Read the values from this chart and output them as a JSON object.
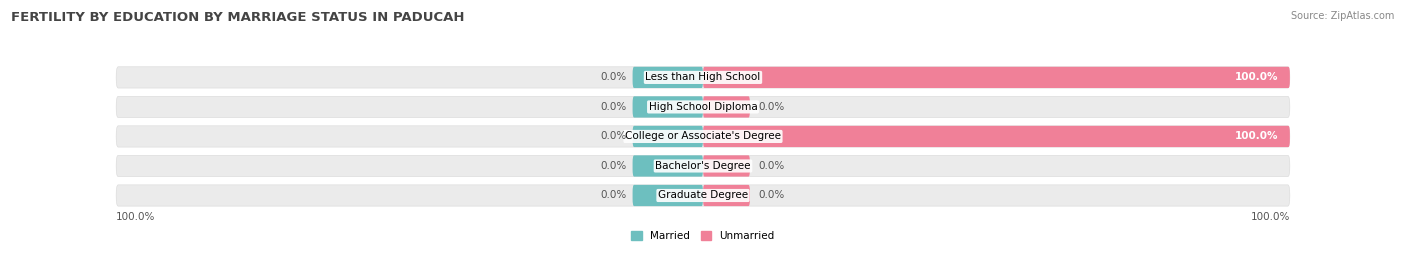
{
  "title": "FERTILITY BY EDUCATION BY MARRIAGE STATUS IN PADUCAH",
  "source": "Source: ZipAtlas.com",
  "categories": [
    "Less than High School",
    "High School Diploma",
    "College or Associate's Degree",
    "Bachelor's Degree",
    "Graduate Degree"
  ],
  "married_values": [
    0.0,
    0.0,
    0.0,
    0.0,
    0.0
  ],
  "unmarried_values": [
    100.0,
    0.0,
    100.0,
    0.0,
    0.0
  ],
  "married_color": "#6DBFBF",
  "unmarried_color": "#F08098",
  "bar_bg_color": "#ebebeb",
  "bar_border_color": "#d8d8d8",
  "title_fontsize": 9.5,
  "source_fontsize": 7,
  "label_fontsize": 7.5,
  "value_fontsize": 7.5,
  "bar_height": 0.72,
  "max_val": 100,
  "married_stub_pct": 12,
  "unmarried_stub_pct": 8,
  "legend_married": "Married",
  "legend_unmarried": "Unmarried",
  "bottom_left_label": "100.0%",
  "bottom_right_label": "100.0%"
}
